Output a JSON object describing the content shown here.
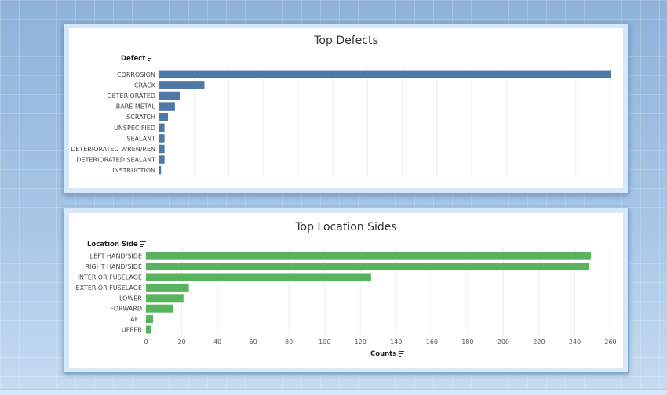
{
  "chart_data": [
    {
      "type": "bar",
      "orientation": "horizontal",
      "title": "Top Defects",
      "ylabel": "Defect",
      "xlabel": "",
      "color": "#4e79a7",
      "grid": true,
      "xlim": [
        0,
        260
      ],
      "categories": [
        "CORROSION",
        "CRACK",
        "DETERIORATED",
        "BARE METAL",
        "SCRATCH",
        "UNSPECIFIED",
        "SEALANT",
        "DETERIORATED WREN/REN",
        "DETERIORATED SEALANT",
        "INSTRUCTION"
      ],
      "values": [
        260,
        26,
        12,
        9,
        5,
        3,
        3,
        3,
        3,
        1
      ]
    },
    {
      "type": "bar",
      "orientation": "horizontal",
      "title": "Top Location Sides",
      "ylabel": "Location Side",
      "xlabel": "Counts",
      "color": "#59b35d",
      "grid": true,
      "xlim": [
        0,
        260
      ],
      "xticks": [
        0,
        20,
        40,
        60,
        80,
        100,
        120,
        140,
        160,
        180,
        200,
        220,
        240,
        260
      ],
      "categories": [
        "LEFT HAND/SIDE",
        "RIGHT HAND/SIDE",
        "INTERIOR FUSELAGE",
        "EXTERIOR FUSELAGE",
        "LOWER",
        "FORWARD",
        "AFT",
        "UPPER"
      ],
      "values": [
        249,
        248,
        126,
        24,
        21,
        15,
        4,
        3
      ]
    }
  ]
}
